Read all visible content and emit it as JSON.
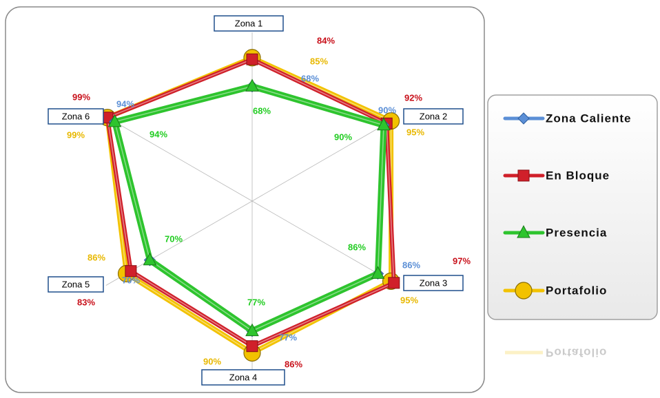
{
  "chart_data": {
    "type": "radar",
    "categories": [
      "Zona 1",
      "Zona 2",
      "Zona 3",
      "Zona 4",
      "Zona 5",
      "Zona 6"
    ],
    "rlim": [
      0,
      100
    ],
    "legend": "right",
    "series": [
      {
        "name": "Zona Caliente",
        "color": "#5b8fd6",
        "values": [
          68,
          90,
          86,
          77,
          70,
          94
        ],
        "value_labels": [
          "68%",
          "90%",
          "86%",
          "77%",
          "70%",
          "94%"
        ]
      },
      {
        "name": "En Bloque",
        "color": "#d0202a",
        "values": [
          84,
          92,
          97,
          86,
          83,
          99
        ],
        "value_labels": [
          "84%",
          "92%",
          "97%",
          "86%",
          "83%",
          "99%"
        ]
      },
      {
        "name": "Presencia",
        "color": "#2ec42e",
        "values": [
          68,
          90,
          86,
          77,
          70,
          94
        ],
        "value_labels": [
          "68%",
          "90%",
          "86%",
          "77%",
          "70%",
          "94%"
        ]
      },
      {
        "name": "Portafolio",
        "color": "#f2c200",
        "values": [
          85,
          95,
          95,
          90,
          86,
          99
        ],
        "value_labels": [
          "85%",
          "95%",
          "95%",
          "90%",
          "86%",
          "99%"
        ]
      }
    ]
  }
}
